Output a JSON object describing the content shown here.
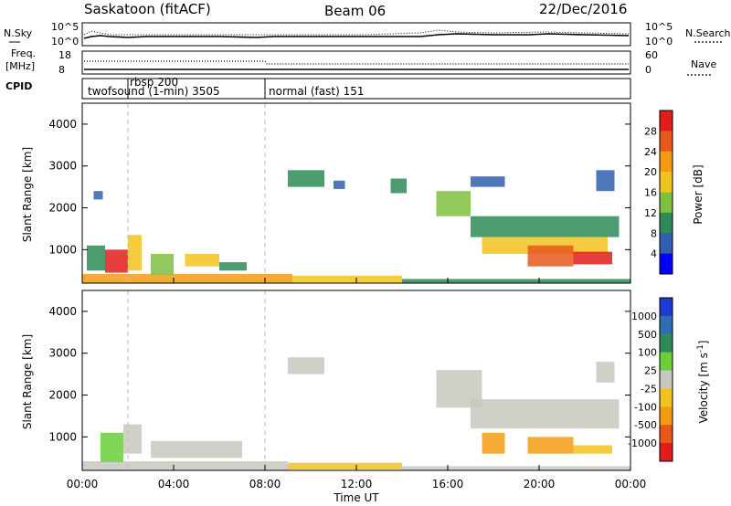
{
  "header": {
    "station": "Saskatoon (fitACF)",
    "beam": "Beam 06",
    "date": "22/Dec/2016"
  },
  "side_labels": {
    "nsky": "N.Sky",
    "nsearch": "N.Search",
    "freq_line1": "Freq.",
    "freq_line2": "[MHz]",
    "nave": "Nave",
    "cpid": "CPID"
  },
  "noise_axis": {
    "left_ticks": [
      "10^5",
      "10^0"
    ],
    "right_ticks": [
      "10^5",
      "10^0"
    ]
  },
  "freq_axis": {
    "left_ticks": [
      "18",
      "8"
    ],
    "right_ticks": [
      "60",
      "0"
    ]
  },
  "cpid_segments": [
    {
      "label": "twofsound (1-min) 3505",
      "start_hour": 0,
      "end_hour": 2
    },
    {
      "label": "rbsp 200",
      "start_hour": 2,
      "end_hour": 8
    },
    {
      "label": "normal (fast) 151",
      "start_hour": 8,
      "end_hour": 24
    }
  ],
  "time_axis": {
    "label": "Time UT",
    "ticks": [
      "00:00",
      "04:00",
      "08:00",
      "12:00",
      "16:00",
      "20:00",
      "00:00"
    ],
    "hours": [
      0,
      4,
      8,
      12,
      16,
      20,
      24
    ]
  },
  "chart_data": [
    {
      "type": "heatmap",
      "ylabel": "Slant Range [km]",
      "xlim": [
        0,
        24
      ],
      "ylim": [
        200,
        4500
      ],
      "yticks": [
        "1000",
        "2000",
        "3000",
        "4000"
      ],
      "ytick_values": [
        1000,
        2000,
        3000,
        4000
      ],
      "colorbar": {
        "label": "Power [dB]",
        "ticks": [
          "4",
          "8",
          "12",
          "16",
          "20",
          "24",
          "28"
        ],
        "colors": [
          "#0000ff",
          "#2f5fb0",
          "#2e8b57",
          "#7fbf3f",
          "#f2c31b",
          "#f39c12",
          "#e8581c",
          "#e21b1b"
        ]
      },
      "regions": [
        {
          "t0": 0.0,
          "t1": 9.2,
          "r0": 200,
          "r1": 420,
          "level": 5
        },
        {
          "t0": 9.2,
          "t1": 14.0,
          "r0": 200,
          "r1": 380,
          "level": 4
        },
        {
          "t0": 14.0,
          "t1": 24.0,
          "r0": 200,
          "r1": 300,
          "level": 2
        },
        {
          "t0": 1.0,
          "t1": 2.0,
          "r0": 450,
          "r1": 1000,
          "level": 7
        },
        {
          "t0": 2.0,
          "t1": 2.6,
          "r0": 500,
          "r1": 1350,
          "level": 4
        },
        {
          "t0": 0.2,
          "t1": 1.0,
          "r0": 500,
          "r1": 1100,
          "level": 2
        },
        {
          "t0": 0.5,
          "t1": 0.9,
          "r0": 2200,
          "r1": 2400,
          "level": 1
        },
        {
          "t0": 3.0,
          "t1": 4.0,
          "r0": 400,
          "r1": 900,
          "level": 3
        },
        {
          "t0": 4.5,
          "t1": 6.0,
          "r0": 600,
          "r1": 900,
          "level": 4
        },
        {
          "t0": 6.0,
          "t1": 7.2,
          "r0": 500,
          "r1": 700,
          "level": 2
        },
        {
          "t0": 9.0,
          "t1": 10.6,
          "r0": 2500,
          "r1": 2900,
          "level": 2
        },
        {
          "t0": 11.0,
          "t1": 11.5,
          "r0": 2450,
          "r1": 2650,
          "level": 1
        },
        {
          "t0": 13.5,
          "t1": 14.2,
          "r0": 2350,
          "r1": 2700,
          "level": 2
        },
        {
          "t0": 15.5,
          "t1": 17.0,
          "r0": 1800,
          "r1": 2400,
          "level": 3
        },
        {
          "t0": 17.0,
          "t1": 23.5,
          "r0": 1300,
          "r1": 1800,
          "level": 2
        },
        {
          "t0": 17.5,
          "t1": 23.0,
          "r0": 900,
          "r1": 1300,
          "level": 4
        },
        {
          "t0": 19.5,
          "t1": 21.5,
          "r0": 600,
          "r1": 1100,
          "level": 6
        },
        {
          "t0": 21.5,
          "t1": 23.2,
          "r0": 650,
          "r1": 950,
          "level": 7
        },
        {
          "t0": 17.0,
          "t1": 18.5,
          "r0": 2500,
          "r1": 2750,
          "level": 1
        },
        {
          "t0": 22.5,
          "t1": 23.3,
          "r0": 2400,
          "r1": 2900,
          "level": 1
        }
      ]
    },
    {
      "type": "heatmap",
      "ylabel": "Slant Range [km]",
      "xlim": [
        0,
        24
      ],
      "ylim": [
        200,
        4500
      ],
      "yticks": [
        "1000",
        "2000",
        "3000",
        "4000"
      ],
      "ytick_values": [
        1000,
        2000,
        3000,
        4000
      ],
      "colorbar": {
        "label": "Velocity [m s^-1]",
        "ticks": [
          "1000",
          "500",
          "100",
          "25",
          "-25",
          "-100",
          "-500",
          "-1000"
        ],
        "colors": [
          "#1e3ad2",
          "#2e6eb0",
          "#2e8b57",
          "#6ccf3a",
          "#c8c8c0",
          "#f2c31b",
          "#f39c12",
          "#e8581c",
          "#e21b1b"
        ]
      },
      "regions": [
        {
          "t0": 0.0,
          "t1": 9.0,
          "r0": 200,
          "r1": 420,
          "level": 4
        },
        {
          "t0": 9.0,
          "t1": 14.0,
          "r0": 220,
          "r1": 380,
          "level": 5
        },
        {
          "t0": 14.0,
          "t1": 24.0,
          "r0": 200,
          "r1": 300,
          "level": 4
        },
        {
          "t0": 0.8,
          "t1": 1.8,
          "r0": 400,
          "r1": 1100,
          "level": 3
        },
        {
          "t0": 1.8,
          "t1": 2.6,
          "r0": 600,
          "r1": 1300,
          "level": 4
        },
        {
          "t0": 3.0,
          "t1": 7.0,
          "r0": 500,
          "r1": 900,
          "level": 4
        },
        {
          "t0": 9.0,
          "t1": 10.6,
          "r0": 2500,
          "r1": 2900,
          "level": 4
        },
        {
          "t0": 15.5,
          "t1": 17.5,
          "r0": 1700,
          "r1": 2600,
          "level": 4
        },
        {
          "t0": 17.0,
          "t1": 23.5,
          "r0": 1200,
          "r1": 1900,
          "level": 4
        },
        {
          "t0": 17.5,
          "t1": 18.5,
          "r0": 600,
          "r1": 1100,
          "level": 6
        },
        {
          "t0": 19.5,
          "t1": 21.5,
          "r0": 600,
          "r1": 1000,
          "level": 6
        },
        {
          "t0": 21.5,
          "t1": 23.2,
          "r0": 600,
          "r1": 800,
          "level": 5
        },
        {
          "t0": 22.5,
          "t1": 23.3,
          "r0": 2300,
          "r1": 2800,
          "level": 4
        }
      ]
    }
  ]
}
